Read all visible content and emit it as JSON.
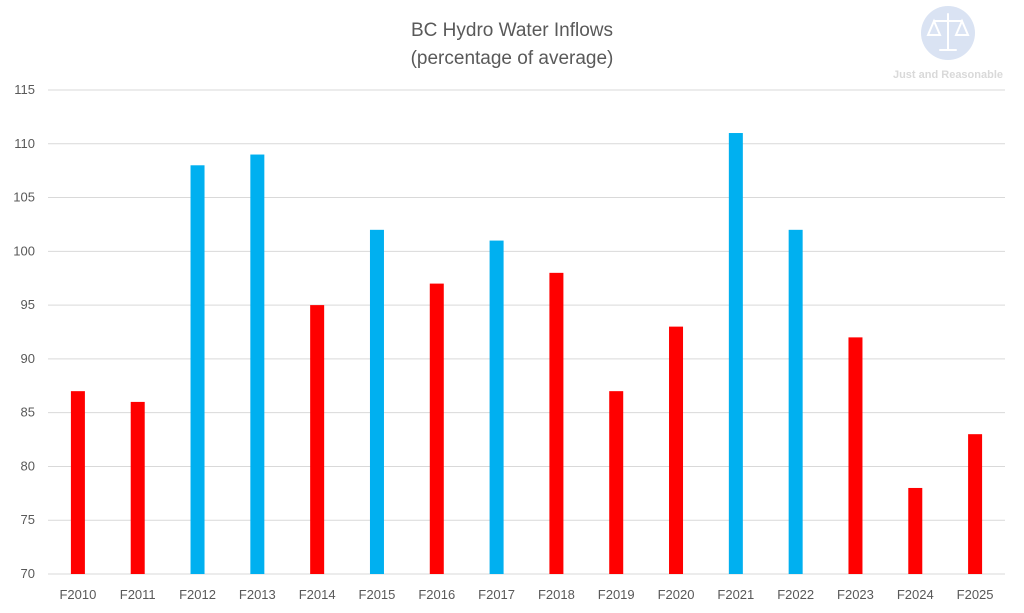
{
  "chart_data": {
    "type": "bar",
    "title": "BC Hydro Water Inflows",
    "subtitle": "(percentage of average)",
    "xlabel": "",
    "ylabel": "",
    "categories": [
      "F2010",
      "F2011",
      "F2012",
      "F2013",
      "F2014",
      "F2015",
      "F2016",
      "F2017",
      "F2018",
      "F2019",
      "F2020",
      "F2021",
      "F2022",
      "F2023",
      "F2024",
      "F2025"
    ],
    "series": [
      {
        "name": "Water inflows",
        "values": [
          87,
          86,
          108,
          109,
          95,
          102,
          97,
          101,
          98,
          87,
          93,
          111,
          102,
          92,
          78,
          83
        ]
      }
    ],
    "ylim": [
      70,
      115
    ],
    "y_ticks": [
      70,
      75,
      80,
      85,
      90,
      95,
      100,
      105,
      110,
      115
    ],
    "grid": true,
    "legend": "none",
    "colors": {
      "above_average": "#00b0f0",
      "below_average": "#ff0000",
      "gridline": "#d9d9d9",
      "text": "#595959"
    }
  },
  "logo": {
    "name": "Just and Reasonable",
    "icon": "scales-of-justice-icon",
    "colors": {
      "circle": "#dae3f3",
      "scales": "#ffffff",
      "text": "#d9d9d9"
    }
  }
}
